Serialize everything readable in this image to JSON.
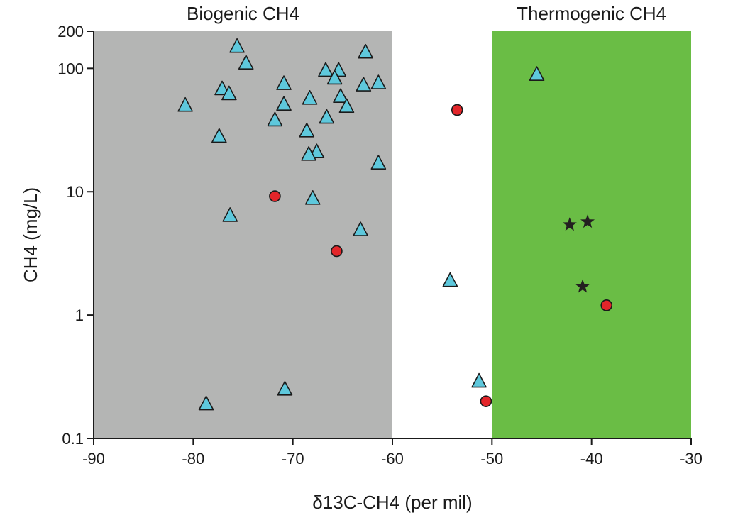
{
  "chart_data": {
    "type": "scatter",
    "title": "",
    "xlabel": "δ13C-CH4 (per mil)",
    "ylabel": "CH4 (mg/L)",
    "xlim": [
      -90,
      -30
    ],
    "ylim": [
      0.1,
      200
    ],
    "yscale": "log",
    "x_ticks": [
      {
        "value": -90,
        "label": "-90"
      },
      {
        "value": -80,
        "label": "-80"
      },
      {
        "value": -70,
        "label": "-70"
      },
      {
        "value": -60,
        "label": "-60"
      },
      {
        "value": -50,
        "label": "-50"
      },
      {
        "value": -40,
        "label": "-40"
      },
      {
        "value": -30,
        "label": "-30"
      }
    ],
    "y_ticks": [
      {
        "value": 0.1,
        "label": "0.1"
      },
      {
        "value": 1,
        "label": "1"
      },
      {
        "value": 10,
        "label": "10"
      },
      {
        "value": 100,
        "label": "100"
      },
      {
        "value": 200,
        "label": "200"
      }
    ],
    "regions": [
      {
        "label": "Biogenic CH4",
        "x_from": -90,
        "x_to": -60,
        "color": "#b4b5b4"
      },
      {
        "label": "Thermogenic CH4",
        "x_from": -50,
        "x_to": -30,
        "color": "#6abd45"
      }
    ],
    "series": [
      {
        "name": "triangles",
        "marker": "triangle",
        "color": "#5ec8dc",
        "points": [
          {
            "x": -75.6,
            "y": 150
          },
          {
            "x": -74.7,
            "y": 110
          },
          {
            "x": -80.8,
            "y": 50
          },
          {
            "x": -77.1,
            "y": 68
          },
          {
            "x": -76.4,
            "y": 62
          },
          {
            "x": -77.4,
            "y": 28
          },
          {
            "x": -70.9,
            "y": 75
          },
          {
            "x": -70.9,
            "y": 51
          },
          {
            "x": -71.8,
            "y": 38
          },
          {
            "x": -68.3,
            "y": 57
          },
          {
            "x": -68.6,
            "y": 31
          },
          {
            "x": -66.7,
            "y": 96
          },
          {
            "x": -65.4,
            "y": 96
          },
          {
            "x": -65.8,
            "y": 83
          },
          {
            "x": -65.2,
            "y": 59
          },
          {
            "x": -66.6,
            "y": 40
          },
          {
            "x": -64.6,
            "y": 49
          },
          {
            "x": -62.7,
            "y": 135
          },
          {
            "x": -62.9,
            "y": 73
          },
          {
            "x": -61.4,
            "y": 76
          },
          {
            "x": -67.6,
            "y": 21
          },
          {
            "x": -68.4,
            "y": 20
          },
          {
            "x": -61.4,
            "y": 17
          },
          {
            "x": -76.3,
            "y": 6.4
          },
          {
            "x": -68.0,
            "y": 8.8
          },
          {
            "x": -63.2,
            "y": 4.9
          },
          {
            "x": -78.7,
            "y": 0.19
          },
          {
            "x": -70.8,
            "y": 0.25
          },
          {
            "x": -54.2,
            "y": 1.9
          },
          {
            "x": -51.3,
            "y": 0.29
          },
          {
            "x": -45.5,
            "y": 89
          }
        ]
      },
      {
        "name": "circles",
        "marker": "circle",
        "color": "#e3262a",
        "points": [
          {
            "x": -71.8,
            "y": 9.2
          },
          {
            "x": -65.6,
            "y": 3.3
          },
          {
            "x": -53.5,
            "y": 46
          },
          {
            "x": -50.6,
            "y": 0.2
          },
          {
            "x": -38.5,
            "y": 1.2
          }
        ]
      },
      {
        "name": "stars",
        "marker": "star",
        "color": "#231f20",
        "points": [
          {
            "x": -42.2,
            "y": 5.4
          },
          {
            "x": -40.4,
            "y": 5.7
          },
          {
            "x": -40.9,
            "y": 1.7
          }
        ]
      }
    ]
  }
}
